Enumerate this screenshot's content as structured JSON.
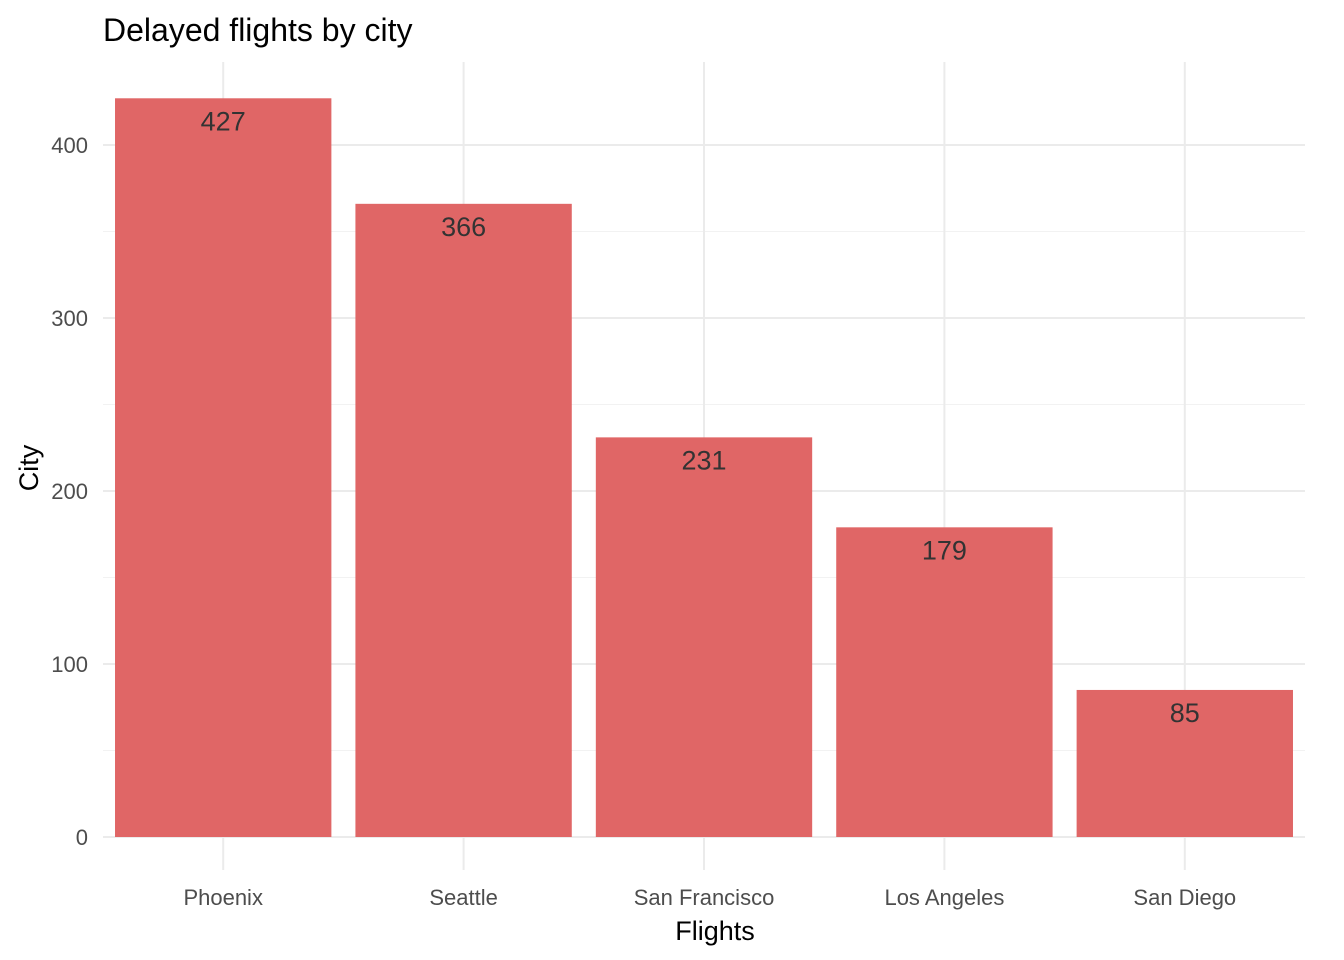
{
  "chart_data": {
    "type": "bar",
    "title": "Delayed flights by city",
    "xlabel": "Flights",
    "ylabel": "City",
    "categories": [
      "Phoenix",
      "Seattle",
      "San Francisco",
      "Los Angeles",
      "San Diego"
    ],
    "values": [
      427,
      366,
      231,
      179,
      85
    ],
    "data_labels": [
      "427",
      "366",
      "231",
      "179",
      "85"
    ],
    "ylim": [
      0,
      450
    ],
    "y_ticks": [
      0,
      100,
      200,
      300,
      400
    ],
    "y_tick_labels": [
      "0",
      "100",
      "200",
      "300",
      "400"
    ],
    "grid": true,
    "legend": "none",
    "bar_color": "#e06666"
  }
}
